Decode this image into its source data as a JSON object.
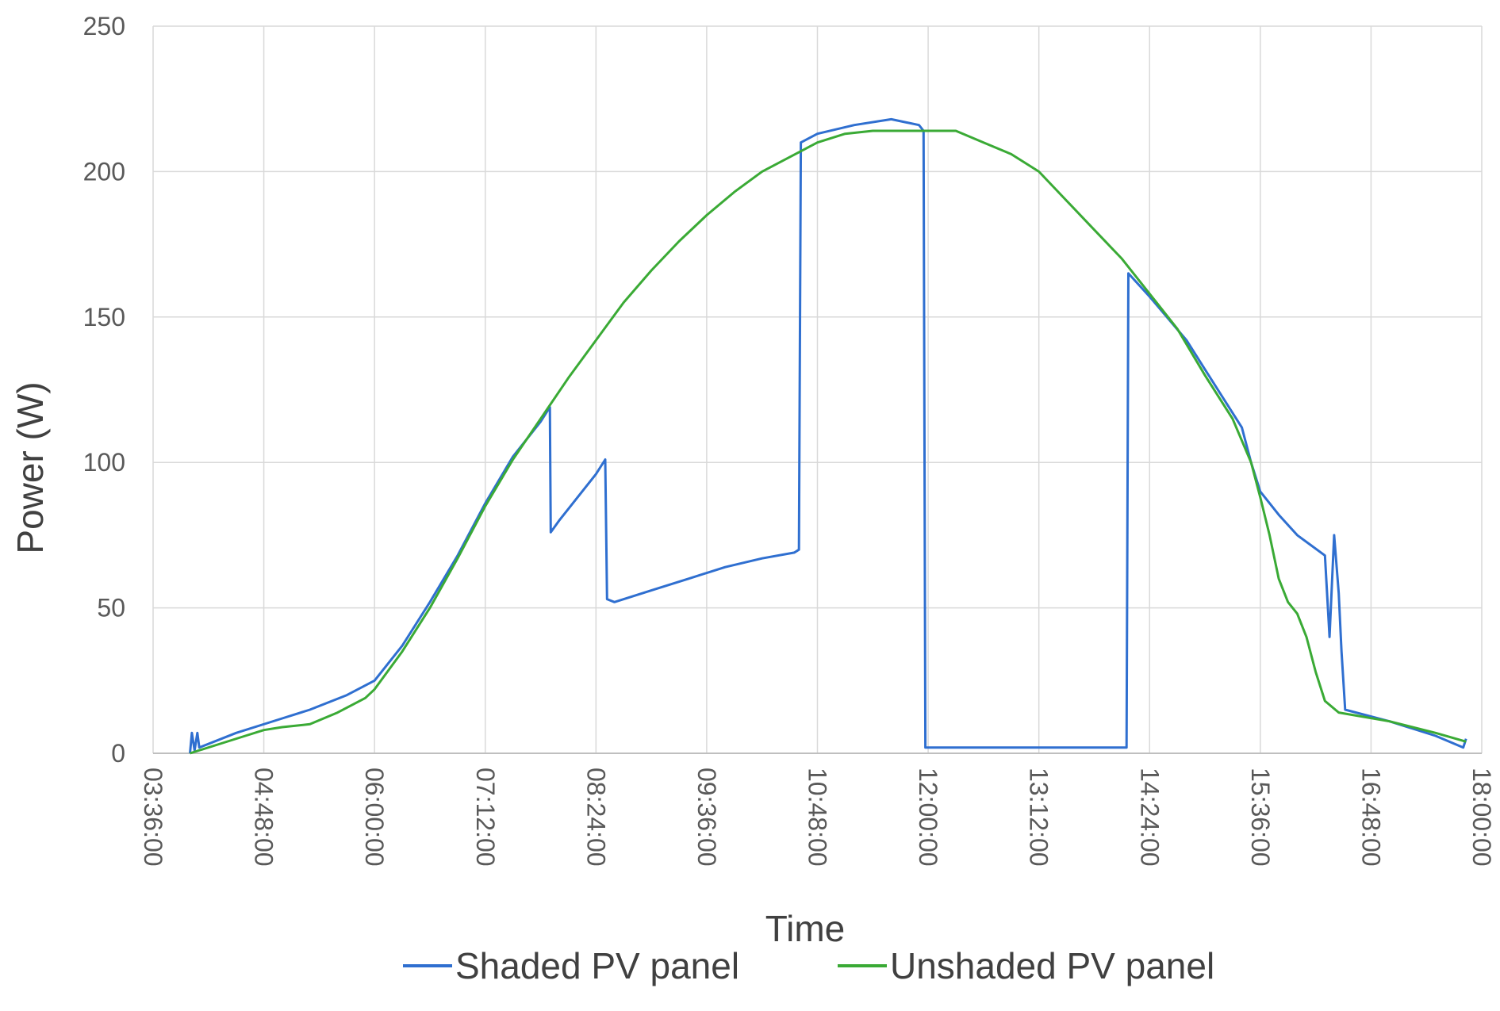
{
  "chart_data": {
    "type": "line",
    "title": "",
    "xlabel": "Time",
    "ylabel": "Power (W)",
    "ylim": [
      0,
      250
    ],
    "y_ticks": [
      0,
      50,
      100,
      150,
      200,
      250
    ],
    "xlim_hours": [
      3.6,
      18.0
    ],
    "x_ticks": [
      {
        "label": "03:36:00",
        "hours": 3.6
      },
      {
        "label": "04:48:00",
        "hours": 4.8
      },
      {
        "label": "06:00:00",
        "hours": 6.0
      },
      {
        "label": "07:12:00",
        "hours": 7.2
      },
      {
        "label": "08:24:00",
        "hours": 8.4
      },
      {
        "label": "09:36:00",
        "hours": 9.6
      },
      {
        "label": "10:48:00",
        "hours": 10.8
      },
      {
        "label": "12:00:00",
        "hours": 12.0
      },
      {
        "label": "13:12:00",
        "hours": 13.2
      },
      {
        "label": "14:24:00",
        "hours": 14.4
      },
      {
        "label": "15:36:00",
        "hours": 15.6
      },
      {
        "label": "16:48:00",
        "hours": 16.8
      },
      {
        "label": "18:00:00",
        "hours": 18.0
      }
    ],
    "grid": true,
    "legend_position": "bottom",
    "series": [
      {
        "name": "Shaded PV panel",
        "color": "#2f6fd0",
        "points": [
          [
            4.0,
            0
          ],
          [
            4.02,
            7
          ],
          [
            4.05,
            1
          ],
          [
            4.08,
            7
          ],
          [
            4.1,
            2
          ],
          [
            4.5,
            7
          ],
          [
            5.0,
            12
          ],
          [
            5.3,
            15
          ],
          [
            5.7,
            20
          ],
          [
            6.0,
            25
          ],
          [
            6.3,
            37
          ],
          [
            6.6,
            52
          ],
          [
            6.9,
            68
          ],
          [
            7.2,
            86
          ],
          [
            7.5,
            102
          ],
          [
            7.8,
            114
          ],
          [
            7.9,
            119
          ],
          [
            7.91,
            76
          ],
          [
            8.0,
            80
          ],
          [
            8.2,
            88
          ],
          [
            8.4,
            96
          ],
          [
            8.5,
            101
          ],
          [
            8.52,
            53
          ],
          [
            8.6,
            52
          ],
          [
            9.0,
            56
          ],
          [
            9.4,
            60
          ],
          [
            9.8,
            64
          ],
          [
            10.2,
            67
          ],
          [
            10.55,
            69
          ],
          [
            10.6,
            70
          ],
          [
            10.62,
            210
          ],
          [
            10.8,
            213
          ],
          [
            11.2,
            216
          ],
          [
            11.6,
            218
          ],
          [
            11.9,
            216
          ],
          [
            11.95,
            214
          ],
          [
            11.97,
            2
          ],
          [
            12.3,
            2
          ],
          [
            12.8,
            2
          ],
          [
            13.4,
            2
          ],
          [
            13.8,
            2
          ],
          [
            14.15,
            2
          ],
          [
            14.17,
            165
          ],
          [
            14.4,
            157
          ],
          [
            14.8,
            142
          ],
          [
            15.0,
            132
          ],
          [
            15.2,
            122
          ],
          [
            15.4,
            112
          ],
          [
            15.5,
            100
          ],
          [
            15.6,
            90
          ],
          [
            15.8,
            82
          ],
          [
            16.0,
            75
          ],
          [
            16.3,
            68
          ],
          [
            16.35,
            40
          ],
          [
            16.4,
            75
          ],
          [
            16.45,
            55
          ],
          [
            16.48,
            35
          ],
          [
            16.52,
            15
          ],
          [
            17.0,
            11
          ],
          [
            17.5,
            6
          ],
          [
            17.8,
            2
          ],
          [
            17.83,
            5
          ]
        ]
      },
      {
        "name": "Unshaded PV panel",
        "color": "#3aaa35",
        "points": [
          [
            4.0,
            0
          ],
          [
            4.3,
            3
          ],
          [
            4.6,
            6
          ],
          [
            4.8,
            8
          ],
          [
            5.0,
            9
          ],
          [
            5.3,
            10
          ],
          [
            5.6,
            14
          ],
          [
            5.9,
            19
          ],
          [
            6.0,
            22
          ],
          [
            6.3,
            35
          ],
          [
            6.6,
            50
          ],
          [
            6.9,
            67
          ],
          [
            7.2,
            85
          ],
          [
            7.5,
            101
          ],
          [
            7.8,
            115
          ],
          [
            8.1,
            129
          ],
          [
            8.4,
            142
          ],
          [
            8.7,
            155
          ],
          [
            9.0,
            166
          ],
          [
            9.3,
            176
          ],
          [
            9.6,
            185
          ],
          [
            9.9,
            193
          ],
          [
            10.2,
            200
          ],
          [
            10.5,
            205
          ],
          [
            10.8,
            210
          ],
          [
            11.1,
            213
          ],
          [
            11.4,
            214
          ],
          [
            11.7,
            214
          ],
          [
            12.0,
            214
          ],
          [
            12.3,
            214
          ],
          [
            12.6,
            210
          ],
          [
            12.9,
            206
          ],
          [
            13.2,
            200
          ],
          [
            13.5,
            190
          ],
          [
            13.8,
            180
          ],
          [
            14.1,
            170
          ],
          [
            14.4,
            158
          ],
          [
            14.7,
            146
          ],
          [
            15.0,
            130
          ],
          [
            15.3,
            115
          ],
          [
            15.5,
            100
          ],
          [
            15.6,
            88
          ],
          [
            15.7,
            75
          ],
          [
            15.8,
            60
          ],
          [
            15.9,
            52
          ],
          [
            16.0,
            48
          ],
          [
            16.1,
            40
          ],
          [
            16.2,
            28
          ],
          [
            16.3,
            18
          ],
          [
            16.45,
            14
          ],
          [
            17.0,
            11
          ],
          [
            17.5,
            7
          ],
          [
            17.83,
            4
          ]
        ]
      }
    ]
  }
}
